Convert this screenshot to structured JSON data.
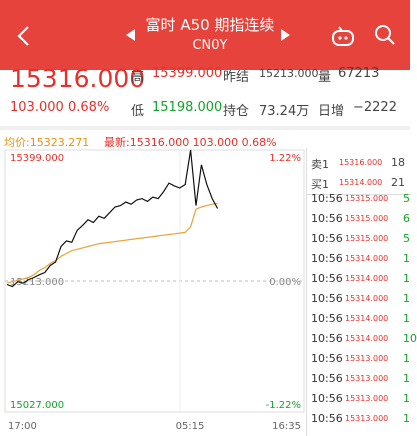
{
  "header": {
    "title": "富时 A50 期指连续",
    "subtitle": "CN0Y"
  },
  "quote": {
    "price": "15316.000",
    "change": "103.000",
    "change_pct": "0.68%",
    "high_label": "高",
    "high": "15399.000",
    "prev_label": "昨结",
    "prev": "15213.000",
    "vol_label": "量",
    "vol": "67213",
    "low_label": "低",
    "low": "15198.000",
    "oi_label": "持仓",
    "oi": "73.24万",
    "inc_label": "日增",
    "inc": "−2222"
  },
  "chart": {
    "avg_text": "均价:15323.271",
    "latest_text": "最新:15316.000 103.000 0.68%",
    "y_top": "15399.000",
    "y_mid": "15213.000",
    "y_bottom": "15027.000",
    "pct_top": "1.22%",
    "pct_mid": "0.00%",
    "pct_bottom": "-1.22%",
    "x_labels": [
      "17:00",
      "05:15",
      "16:35"
    ],
    "price": [
      15208,
      15205,
      15212,
      15210,
      15215,
      15218,
      15222,
      15225,
      15235,
      15240,
      15262,
      15270,
      15268,
      15285,
      15292,
      15300,
      15296,
      15305,
      15302,
      15310,
      15318,
      15320,
      15325,
      15322,
      15328,
      15330,
      15326,
      15332,
      15330,
      15340,
      15352,
      15348,
      15345,
      15350,
      15399,
      15320,
      15378,
      15350,
      15330,
      15316
    ],
    "avg": [
      15210,
      15212,
      15214,
      15216,
      15218,
      15222,
      15228,
      15232,
      15238,
      15242,
      15248,
      15252,
      15256,
      15258,
      15260,
      15262,
      15264,
      15266,
      15267,
      15268,
      15269,
      15270,
      15271,
      15272,
      15273,
      15274,
      15275,
      15276,
      15277,
      15278,
      15279,
      15280,
      15281,
      15282,
      15290,
      15315,
      15318,
      15320,
      15322,
      15323
    ]
  },
  "book": [
    {
      "side": "卖1",
      "price": "15316.000",
      "qty": "18"
    },
    {
      "side": "买1",
      "price": "15314.000",
      "qty": "21"
    }
  ],
  "trades": [
    [
      "10:56",
      "15315.000",
      "5"
    ],
    [
      "10:56",
      "15315.000",
      "6"
    ],
    [
      "10:56",
      "15315.000",
      "5"
    ],
    [
      "10:56",
      "15314.000",
      "1"
    ],
    [
      "10:56",
      "15314.000",
      "1"
    ],
    [
      "10:56",
      "15314.000",
      "1"
    ],
    [
      "10:56",
      "15314.000",
      "1"
    ],
    [
      "10:56",
      "15314.000",
      "10"
    ],
    [
      "10:56",
      "15313.000",
      "1"
    ],
    [
      "10:56",
      "15313.000",
      "1"
    ],
    [
      "10:56",
      "15313.000",
      "1"
    ],
    [
      "10:56",
      "15313.000",
      "1"
    ]
  ]
}
